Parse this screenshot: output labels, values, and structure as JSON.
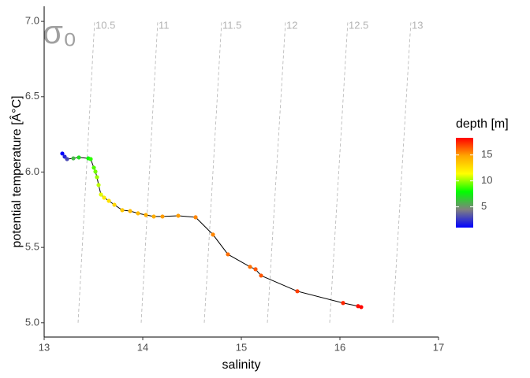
{
  "chart_data": {
    "type": "ts-diagram",
    "xlabel": "salinity",
    "ylabel": "potential temperature [Â°C]",
    "annotation": "σ₀",
    "xlim": [
      13,
      17
    ],
    "xticks": [
      13,
      14,
      15,
      16,
      17
    ],
    "ylim": [
      4.905,
      7.1
    ],
    "yticks": [
      {
        "value": 5,
        "label": "5.0"
      },
      5.5,
      {
        "value": 6,
        "label": "6.0"
      },
      6.5,
      {
        "value": 7,
        "label": "7.0"
      }
    ],
    "isopycnals": [
      {
        "label": "10.5",
        "x": [
          13.344,
          13.512
        ],
        "y": [
          5.0,
          7.0
        ]
      },
      {
        "label": "11",
        "x": [
          13.984,
          14.152
        ],
        "y": [
          5.0,
          7.0
        ]
      },
      {
        "label": "11.5",
        "x": [
          14.624,
          14.8
        ],
        "y": [
          5.0,
          7.0
        ]
      },
      {
        "label": "12",
        "x": [
          15.264,
          15.448
        ],
        "y": [
          5.0,
          7.0
        ]
      },
      {
        "label": "12.5",
        "x": [
          15.896,
          16.08
        ],
        "y": [
          5.0,
          7.0
        ]
      },
      {
        "label": "13",
        "x": [
          16.536,
          16.72
        ],
        "y": [
          5.0,
          7.0
        ]
      }
    ],
    "line_color": "#000000",
    "x": [
      13.184,
      13.208,
      13.232,
      13.296,
      13.352,
      13.448,
      13.472,
      13.504,
      13.52,
      13.536,
      13.552,
      13.576,
      13.608,
      13.656,
      13.712,
      13.792,
      13.872,
      13.952,
      14.032,
      14.112,
      14.2,
      14.36,
      14.536,
      14.712,
      14.864,
      15.088,
      15.144,
      15.2,
      15.568,
      16.032,
      16.184,
      16.216
    ],
    "y": [
      6.123,
      6.102,
      6.086,
      6.091,
      6.097,
      6.091,
      6.086,
      6.029,
      6.003,
      5.966,
      5.914,
      5.851,
      5.83,
      5.809,
      5.783,
      5.747,
      5.741,
      5.726,
      5.715,
      5.705,
      5.705,
      5.71,
      5.7,
      5.585,
      5.454,
      5.371,
      5.355,
      5.313,
      5.209,
      5.131,
      5.11,
      5.104
    ],
    "depth": [
      1,
      2,
      3,
      6,
      7,
      8,
      8.5,
      9,
      9.5,
      10,
      10.5,
      11,
      12,
      12.5,
      13,
      13.5,
      14,
      14,
      14.5,
      14.5,
      15,
      15,
      15.5,
      15.5,
      16,
      16,
      16.5,
      16.5,
      17,
      17.5,
      18,
      18.2
    ],
    "legend": {
      "title": "depth [m]",
      "clim": [
        1,
        18.3
      ],
      "cticks": [
        5,
        10,
        15
      ],
      "colors": [
        "#0000ff",
        "#808080",
        "#00ff00",
        "#ffff00",
        "#ffa500",
        "#ff0000"
      ]
    }
  }
}
